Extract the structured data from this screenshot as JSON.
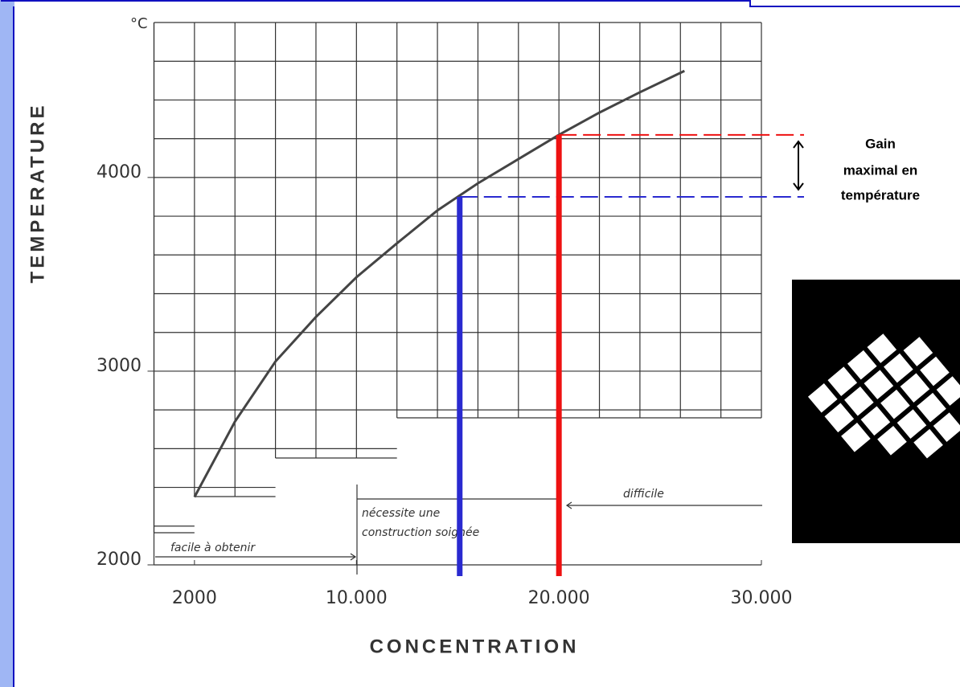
{
  "chart_data": {
    "type": "line",
    "y_unit": "°C",
    "ylabel": "TEMPERATURE",
    "xlabel": "CONCENTRATION",
    "xlim": [
      0,
      30000
    ],
    "xticks": [
      {
        "value": 2000,
        "label": "2000"
      },
      {
        "value": 10000,
        "label": "10.000"
      },
      {
        "value": 20000,
        "label": "20.000"
      },
      {
        "value": 30000,
        "label": "30.000"
      }
    ],
    "ylim": [
      2000,
      4800
    ],
    "yticks": [
      2000,
      3000,
      4000
    ],
    "series": [
      {
        "color": "#444444",
        "x": [
          2000,
          4000,
          6000,
          8000,
          10000,
          12000,
          14000,
          16000,
          18000,
          20000,
          22000,
          24000,
          26200
        ],
        "values": [
          2350,
          2740,
          3050,
          3280,
          3485,
          3660,
          3830,
          3970,
          4095,
          4220,
          4335,
          4440,
          4550
        ]
      }
    ],
    "guides": [
      {
        "x": 15100,
        "y": 3900,
        "color": "#2a2ad0"
      },
      {
        "x": 20000,
        "y": 4220,
        "color": "#ee1111"
      }
    ],
    "zones": [
      "facile à obtenir",
      "nécessite une construction soignée",
      "difficile"
    ],
    "gain_label": [
      "Gain",
      "maximal en",
      "température"
    ]
  }
}
